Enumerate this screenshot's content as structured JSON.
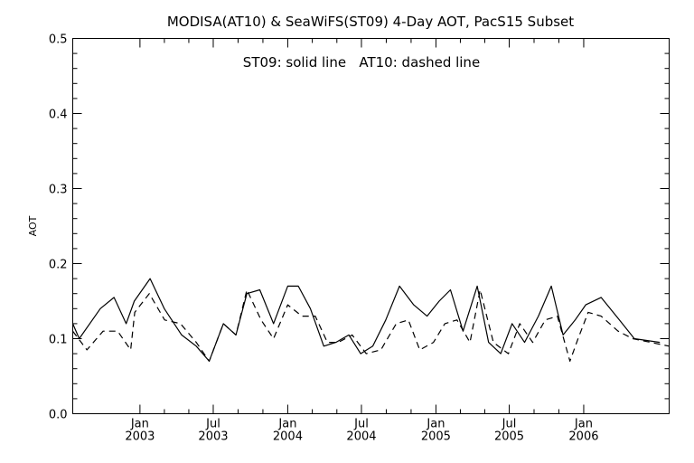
{
  "chart_data": {
    "type": "line",
    "title": "MODISA(AT10) & SeaWiFS(ST09) 4-Day AOT, PacS15 Subset",
    "legend_text": "ST09: solid line   AT10: dashed line",
    "xlabel": "",
    "ylabel": "AOT",
    "ylim": [
      0,
      0.5
    ],
    "xlim": [
      "2002-07-19",
      "2006-07-31"
    ],
    "yticks": [
      "0.0",
      "0.1",
      "0.2",
      "0.3",
      "0.4",
      "0.5"
    ],
    "xticks": [
      {
        "date": "2003-01-01",
        "month": "Jan",
        "year": "2003"
      },
      {
        "date": "2003-07-01",
        "month": "Jul",
        "year": "2003"
      },
      {
        "date": "2004-01-01",
        "month": "Jan",
        "year": "2004"
      },
      {
        "date": "2004-07-01",
        "month": "Jul",
        "year": "2004"
      },
      {
        "date": "2005-01-01",
        "month": "Jan",
        "year": "2005"
      },
      {
        "date": "2005-07-01",
        "month": "Jul",
        "year": "2005"
      },
      {
        "date": "2006-01-01",
        "month": "Jan",
        "year": "2006"
      }
    ],
    "grid": false,
    "series": [
      {
        "name": "ST09",
        "style": "solid",
        "x": [
          "2002-07-19",
          "2002-08-04",
          "2002-09-25",
          "2002-10-29",
          "2002-11-28",
          "2002-12-18",
          "2003-01-26",
          "2003-03-02",
          "2003-04-14",
          "2003-05-20",
          "2003-06-21",
          "2003-07-26",
          "2003-08-26",
          "2003-09-22",
          "2003-10-24",
          "2003-11-27",
          "2004-01-01",
          "2004-01-27",
          "2004-02-26",
          "2004-03-30",
          "2004-04-29",
          "2004-05-31",
          "2004-06-29",
          "2004-07-29",
          "2004-08-30",
          "2004-10-03",
          "2004-11-07",
          "2004-12-10",
          "2005-01-09",
          "2005-02-06",
          "2005-03-09",
          "2005-04-13",
          "2005-05-11",
          "2005-06-10",
          "2005-07-08",
          "2005-08-08",
          "2005-09-11",
          "2005-10-13",
          "2005-11-11",
          "2005-12-11",
          "2006-01-06",
          "2006-02-13",
          "2006-03-30",
          "2006-05-06",
          "2006-07-08"
        ],
        "values": [
          0.12,
          0.1,
          0.14,
          0.155,
          0.12,
          0.15,
          0.18,
          0.14,
          0.105,
          0.09,
          0.07,
          0.12,
          0.105,
          0.16,
          0.165,
          0.12,
          0.17,
          0.17,
          0.14,
          0.09,
          0.095,
          0.105,
          0.08,
          0.09,
          0.125,
          0.17,
          0.145,
          0.13,
          0.15,
          0.165,
          0.11,
          0.17,
          0.095,
          0.08,
          0.12,
          0.095,
          0.13,
          0.17,
          0.105,
          0.125,
          0.145,
          0.155,
          0.125,
          0.1,
          0.095
        ]
      },
      {
        "name": "AT10",
        "style": "dashed",
        "x": [
          "2002-07-19",
          "2002-08-23",
          "2002-10-02",
          "2002-11-07",
          "2002-12-09",
          "2002-12-19",
          "2003-01-24",
          "2003-03-03",
          "2003-04-11",
          "2003-05-20",
          "2003-06-21",
          "2003-07-26",
          "2003-08-26",
          "2003-09-22",
          "2003-10-27",
          "2003-11-27",
          "2004-01-01",
          "2004-02-05",
          "2004-03-09",
          "2004-04-08",
          "2004-05-05",
          "2004-06-08",
          "2004-07-13",
          "2004-08-18",
          "2004-09-25",
          "2004-10-25",
          "2004-11-22",
          "2004-12-26",
          "2005-01-23",
          "2005-02-22",
          "2005-03-26",
          "2005-04-20",
          "2005-05-23",
          "2005-06-29",
          "2005-07-27",
          "2005-08-28",
          "2005-09-28",
          "2005-10-28",
          "2005-11-28",
          "2005-12-18",
          "2006-01-12",
          "2006-02-13",
          "2006-03-27",
          "2006-05-02",
          "2006-07-31"
        ],
        "values": [
          0.11,
          0.085,
          0.11,
          0.11,
          0.085,
          0.135,
          0.16,
          0.125,
          0.12,
          0.095,
          0.07,
          0.12,
          0.105,
          0.165,
          0.125,
          0.1,
          0.145,
          0.13,
          0.13,
          0.095,
          0.095,
          0.105,
          0.08,
          0.085,
          0.12,
          0.125,
          0.085,
          0.095,
          0.12,
          0.125,
          0.095,
          0.165,
          0.095,
          0.08,
          0.12,
          0.095,
          0.125,
          0.13,
          0.07,
          0.1,
          0.135,
          0.13,
          0.11,
          0.1,
          0.09
        ]
      }
    ]
  }
}
